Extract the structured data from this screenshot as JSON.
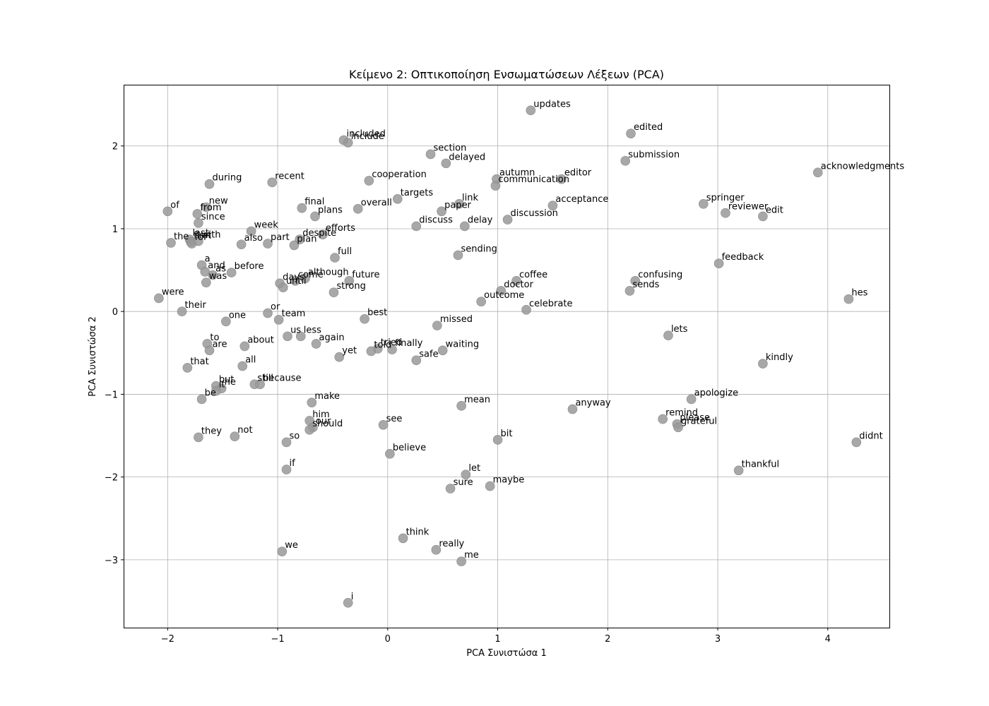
{
  "chart_data": {
    "type": "scatter",
    "title": "Κείμενο 2: Οπτικοποίηση Ενσωματώσεων Λέξεων (PCA)",
    "xlabel": "PCA Συνιστώσα 1",
    "ylabel": "PCA Συνιστώσα 2",
    "xlim": [
      -2.4,
      4.56
    ],
    "ylim": [
      -3.82,
      2.74
    ],
    "xticks": [
      -2,
      -1,
      0,
      1,
      2,
      3,
      4
    ],
    "yticks": [
      -3,
      -2,
      -1,
      0,
      1,
      2
    ],
    "xtick_labels": [
      "−2",
      "−1",
      "0",
      "1",
      "2",
      "3",
      "4"
    ],
    "ytick_labels": [
      "−3",
      "−2",
      "−1",
      "0",
      "1",
      "2"
    ],
    "grid": true,
    "marker_color": "#999999",
    "points": [
      {
        "label": "updates",
        "x": 1.3,
        "y": 2.43
      },
      {
        "label": "edited",
        "x": 2.21,
        "y": 2.15
      },
      {
        "label": "included",
        "x": -0.4,
        "y": 2.07
      },
      {
        "label": "include",
        "x": -0.36,
        "y": 2.04
      },
      {
        "label": "section",
        "x": 0.39,
        "y": 1.9
      },
      {
        "label": "delayed",
        "x": 0.53,
        "y": 1.79
      },
      {
        "label": "submission",
        "x": 2.16,
        "y": 1.82
      },
      {
        "label": "acknowledgments",
        "x": 3.91,
        "y": 1.68
      },
      {
        "label": "during",
        "x": -1.62,
        "y": 1.54
      },
      {
        "label": "recent",
        "x": -1.05,
        "y": 1.56
      },
      {
        "label": "cooperation",
        "x": -0.17,
        "y": 1.58
      },
      {
        "label": "autumn",
        "x": 0.99,
        "y": 1.6
      },
      {
        "label": "editor",
        "x": 1.58,
        "y": 1.6
      },
      {
        "label": "communication",
        "x": 0.98,
        "y": 1.52
      },
      {
        "label": "targets",
        "x": 0.09,
        "y": 1.36
      },
      {
        "label": "link",
        "x": 0.65,
        "y": 1.3
      },
      {
        "label": "of",
        "x": -2.0,
        "y": 1.21
      },
      {
        "label": "new",
        "x": -1.65,
        "y": 1.26
      },
      {
        "label": "from",
        "x": -1.73,
        "y": 1.18
      },
      {
        "label": "since",
        "x": -1.72,
        "y": 1.07
      },
      {
        "label": "final",
        "x": -0.78,
        "y": 1.25
      },
      {
        "label": "plans",
        "x": -0.66,
        "y": 1.15
      },
      {
        "label": "overall",
        "x": -0.27,
        "y": 1.24
      },
      {
        "label": "paper",
        "x": 0.49,
        "y": 1.21
      },
      {
        "label": "acceptance",
        "x": 1.5,
        "y": 1.28
      },
      {
        "label": "springer",
        "x": 2.87,
        "y": 1.3
      },
      {
        "label": "reviewer",
        "x": 3.07,
        "y": 1.19
      },
      {
        "label": "edit",
        "x": 3.41,
        "y": 1.15
      },
      {
        "label": "discussion",
        "x": 1.09,
        "y": 1.11
      },
      {
        "label": "discuss",
        "x": 0.26,
        "y": 1.03
      },
      {
        "label": "delay",
        "x": 0.7,
        "y": 1.03
      },
      {
        "label": "week",
        "x": -1.24,
        "y": 0.97
      },
      {
        "label": "efforts",
        "x": -0.59,
        "y": 0.93
      },
      {
        "label": "despite",
        "x": -0.8,
        "y": 0.87
      },
      {
        "label": "part",
        "x": -1.09,
        "y": 0.82
      },
      {
        "label": "plan",
        "x": -0.85,
        "y": 0.8
      },
      {
        "label": "also",
        "x": -1.33,
        "y": 0.81
      },
      {
        "label": "last",
        "x": -1.8,
        "y": 0.87
      },
      {
        "label": "the",
        "x": -1.97,
        "y": 0.83
      },
      {
        "label": "first",
        "x": -1.79,
        "y": 0.84
      },
      {
        "label": "for",
        "x": -1.78,
        "y": 0.82
      },
      {
        "label": "with",
        "x": -1.72,
        "y": 0.85
      },
      {
        "label": "full",
        "x": -0.48,
        "y": 0.65
      },
      {
        "label": "sending",
        "x": 0.64,
        "y": 0.68
      },
      {
        "label": "feedback",
        "x": 3.01,
        "y": 0.58
      },
      {
        "label": "a",
        "x": -1.69,
        "y": 0.56
      },
      {
        "label": "and",
        "x": -1.66,
        "y": 0.48
      },
      {
        "label": "as",
        "x": -1.59,
        "y": 0.44
      },
      {
        "label": "before",
        "x": -1.42,
        "y": 0.47
      },
      {
        "label": "was",
        "x": -1.65,
        "y": 0.35
      },
      {
        "label": "although",
        "x": -0.75,
        "y": 0.4
      },
      {
        "label": "come",
        "x": -0.84,
        "y": 0.37
      },
      {
        "label": "days",
        "x": -0.98,
        "y": 0.34
      },
      {
        "label": "until",
        "x": -0.95,
        "y": 0.29
      },
      {
        "label": "future",
        "x": -0.35,
        "y": 0.37
      },
      {
        "label": "strong",
        "x": -0.49,
        "y": 0.23
      },
      {
        "label": "coffee",
        "x": 1.17,
        "y": 0.37
      },
      {
        "label": "doctor",
        "x": 1.03,
        "y": 0.25
      },
      {
        "label": "confusing",
        "x": 2.25,
        "y": 0.37
      },
      {
        "label": "sends",
        "x": 2.2,
        "y": 0.25
      },
      {
        "label": "outcome",
        "x": 0.85,
        "y": 0.12
      },
      {
        "label": "celebrate",
        "x": 1.26,
        "y": 0.02
      },
      {
        "label": "were",
        "x": -2.08,
        "y": 0.16
      },
      {
        "label": "hes",
        "x": 4.19,
        "y": 0.15
      },
      {
        "label": "their",
        "x": -1.87,
        "y": 0.0
      },
      {
        "label": "or",
        "x": -1.09,
        "y": -0.02
      },
      {
        "label": "team",
        "x": -0.99,
        "y": -0.1
      },
      {
        "label": "one",
        "x": -1.47,
        "y": -0.12
      },
      {
        "label": "best",
        "x": -0.21,
        "y": -0.09
      },
      {
        "label": "missed",
        "x": 0.45,
        "y": -0.17
      },
      {
        "label": "lets",
        "x": 2.55,
        "y": -0.29
      },
      {
        "label": "us",
        "x": -0.91,
        "y": -0.3
      },
      {
        "label": "less",
        "x": -0.79,
        "y": -0.3
      },
      {
        "label": "to",
        "x": -1.64,
        "y": -0.39
      },
      {
        "label": "are",
        "x": -1.62,
        "y": -0.47
      },
      {
        "label": "about",
        "x": -1.3,
        "y": -0.42
      },
      {
        "label": "again",
        "x": -0.65,
        "y": -0.39
      },
      {
        "label": "tried",
        "x": -0.09,
        "y": -0.45
      },
      {
        "label": "told",
        "x": -0.15,
        "y": -0.48
      },
      {
        "label": "finally",
        "x": 0.04,
        "y": -0.46
      },
      {
        "label": "waiting",
        "x": 0.5,
        "y": -0.47
      },
      {
        "label": "yet",
        "x": -0.44,
        "y": -0.55
      },
      {
        "label": "safe",
        "x": 0.26,
        "y": -0.59
      },
      {
        "label": "kindly",
        "x": 3.41,
        "y": -0.63
      },
      {
        "label": "that",
        "x": -1.82,
        "y": -0.68
      },
      {
        "label": "all",
        "x": -1.32,
        "y": -0.66
      },
      {
        "label": "still",
        "x": -1.21,
        "y": -0.88
      },
      {
        "label": "because",
        "x": -1.16,
        "y": -0.88
      },
      {
        "label": "but",
        "x": -1.56,
        "y": -0.9
      },
      {
        "label": "he",
        "x": -1.51,
        "y": -0.93
      },
      {
        "label": "it",
        "x": -1.56,
        "y": -0.96
      },
      {
        "label": "be",
        "x": -1.69,
        "y": -1.06
      },
      {
        "label": "make",
        "x": -0.69,
        "y": -1.1
      },
      {
        "label": "mean",
        "x": 0.67,
        "y": -1.14
      },
      {
        "label": "apologize",
        "x": 2.76,
        "y": -1.06
      },
      {
        "label": "anyway",
        "x": 1.68,
        "y": -1.18
      },
      {
        "label": "remind",
        "x": 2.5,
        "y": -1.3
      },
      {
        "label": "please",
        "x": 2.63,
        "y": -1.36
      },
      {
        "label": "grateful",
        "x": 2.64,
        "y": -1.4
      },
      {
        "label": "him",
        "x": -0.71,
        "y": -1.32
      },
      {
        "label": "our",
        "x": -0.68,
        "y": -1.4
      },
      {
        "label": "should",
        "x": -0.71,
        "y": -1.43
      },
      {
        "label": "see",
        "x": -0.04,
        "y": -1.37
      },
      {
        "label": "they",
        "x": -1.72,
        "y": -1.52
      },
      {
        "label": "not",
        "x": -1.39,
        "y": -1.51
      },
      {
        "label": "so",
        "x": -0.92,
        "y": -1.58
      },
      {
        "label": "bit",
        "x": 1.0,
        "y": -1.55
      },
      {
        "label": "didnt",
        "x": 4.26,
        "y": -1.58
      },
      {
        "label": "believe",
        "x": 0.02,
        "y": -1.72
      },
      {
        "label": "if",
        "x": -0.92,
        "y": -1.91
      },
      {
        "label": "thankful",
        "x": 3.19,
        "y": -1.92
      },
      {
        "label": "let",
        "x": 0.71,
        "y": -1.97
      },
      {
        "label": "sure",
        "x": 0.57,
        "y": -2.14
      },
      {
        "label": "maybe",
        "x": 0.93,
        "y": -2.11
      },
      {
        "label": "think",
        "x": 0.14,
        "y": -2.74
      },
      {
        "label": "really",
        "x": 0.44,
        "y": -2.88
      },
      {
        "label": "me",
        "x": 0.67,
        "y": -3.02
      },
      {
        "label": "we",
        "x": -0.96,
        "y": -2.9
      },
      {
        "label": "i",
        "x": -0.36,
        "y": -3.52
      }
    ]
  }
}
